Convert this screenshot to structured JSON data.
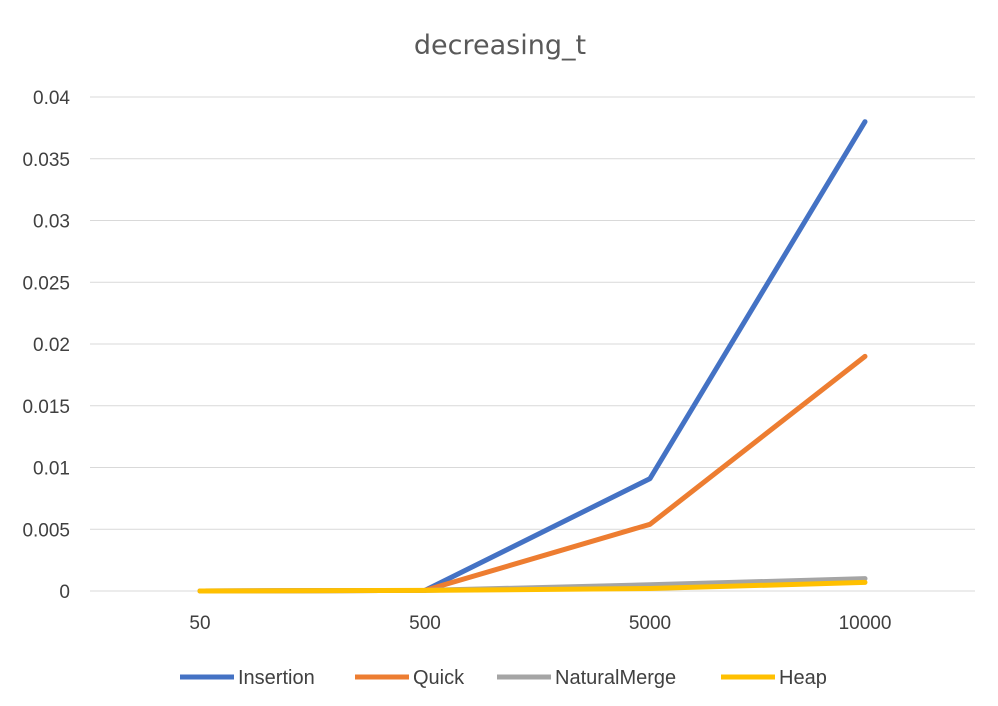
{
  "chart_data": {
    "type": "line",
    "title": "decreasing_t",
    "xlabel": "",
    "ylabel": "",
    "categories": [
      "50",
      "500",
      "5000",
      "10000"
    ],
    "ylim": [
      0,
      0.04
    ],
    "yticks": [
      "0",
      "0.005",
      "0.01",
      "0.015",
      "0.02",
      "0.025",
      "0.03",
      "0.035",
      "0.04"
    ],
    "grid": true,
    "legend_position": "bottom",
    "series": [
      {
        "name": "Insertion",
        "color": "#4472c4",
        "values": [
          0,
          5e-05,
          0.0091,
          0.038
        ]
      },
      {
        "name": "Quick",
        "color": "#ed7d31",
        "values": [
          0,
          5e-05,
          0.0054,
          0.019
        ]
      },
      {
        "name": "NaturalMerge",
        "color": "#a5a5a5",
        "values": [
          0,
          5e-05,
          0.0005,
          0.001
        ]
      },
      {
        "name": "Heap",
        "color": "#ffc000",
        "values": [
          0,
          5e-05,
          0.0002,
          0.0007
        ]
      }
    ]
  }
}
